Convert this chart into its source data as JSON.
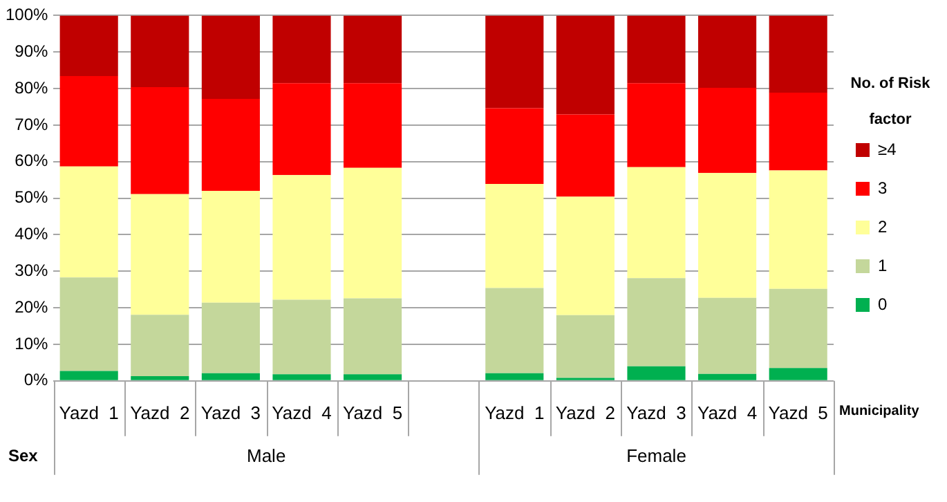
{
  "chart_data": {
    "type": "bar",
    "stacked": true,
    "categories": [
      "Yazd  1",
      "Yazd  2",
      "Yazd  3",
      "Yazd  4",
      "Yazd  5",
      null,
      "Yazd  1",
      "Yazd  2",
      "Yazd  3",
      "Yazd  4",
      "Yazd  5"
    ],
    "series": [
      {
        "name": "0",
        "color": "#00b050",
        "values": [
          2.7,
          1.3,
          2.1,
          1.8,
          1.8,
          null,
          2.1,
          0.8,
          4.0,
          1.9,
          3.5
        ]
      },
      {
        "name": "1",
        "color": "#c4d79b",
        "values": [
          25.6,
          16.8,
          19.3,
          20.4,
          20.8,
          null,
          23.3,
          17.2,
          24.1,
          20.8,
          21.7
        ]
      },
      {
        "name": "2",
        "color": "#ffff99",
        "values": [
          30.4,
          33.0,
          30.6,
          34.1,
          35.7,
          null,
          28.5,
          32.4,
          30.4,
          34.2,
          32.4
        ]
      },
      {
        "name": "3",
        "color": "#ff0000",
        "values": [
          24.7,
          29.3,
          25.2,
          25.2,
          23.2,
          null,
          20.7,
          22.5,
          23.0,
          23.3,
          21.3
        ]
      },
      {
        "name": "≥4",
        "color": "#c00000",
        "values": [
          16.6,
          19.6,
          22.8,
          18.5,
          18.5,
          null,
          25.4,
          27.1,
          18.5,
          19.8,
          21.1
        ]
      }
    ],
    "ylim": [
      0,
      100
    ],
    "yticks": [
      {
        "value": 0,
        "label": "0%"
      },
      {
        "value": 10,
        "label": "10%"
      },
      {
        "value": 20,
        "label": "20%"
      },
      {
        "value": 30,
        "label": "30%"
      },
      {
        "value": 40,
        "label": "40%"
      },
      {
        "value": 50,
        "label": "50%"
      },
      {
        "value": 60,
        "label": "60%"
      },
      {
        "value": 70,
        "label": "70%"
      },
      {
        "value": 80,
        "label": "80%"
      },
      {
        "value": 90,
        "label": "90%"
      },
      {
        "value": 100,
        "label": "100%"
      }
    ],
    "grid": "y",
    "legend": "right",
    "legend_title": "No. of Risk factor",
    "annotations": [
      "Municipality",
      "Sex",
      "Male",
      "Female"
    ]
  }
}
